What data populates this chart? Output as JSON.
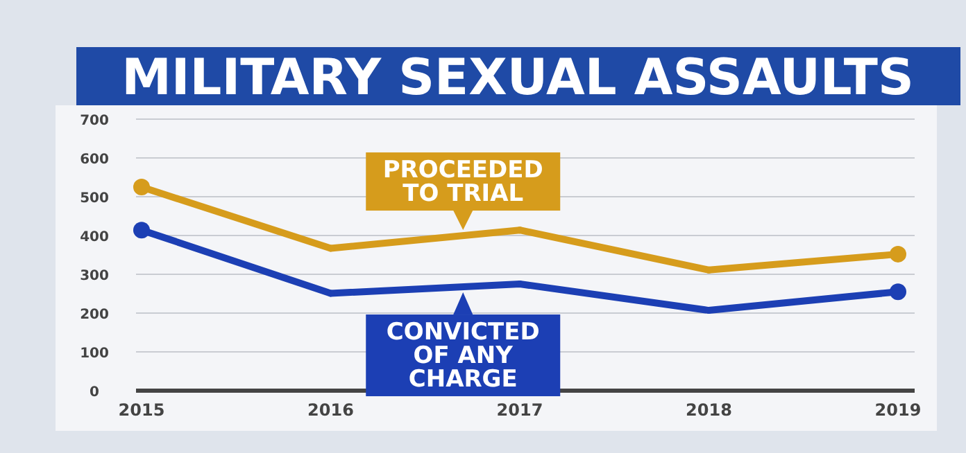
{
  "chart_data": {
    "type": "line",
    "title": "MILITARY SEXUAL ASSAULTS",
    "categories": [
      "2015",
      "2016",
      "2017",
      "2018",
      "2019"
    ],
    "series": [
      {
        "name": "PROCEEDED TO TRIAL",
        "color": "#d69c1c",
        "values": [
          525,
          367,
          414,
          311,
          352
        ]
      },
      {
        "name": "CONVICTED OF ANY CHARGE",
        "color": "#1c3fb4",
        "values": [
          414,
          251,
          275,
          207,
          255
        ]
      }
    ],
    "ylim": [
      0,
      700
    ],
    "yticks": [
      0,
      100,
      200,
      300,
      400,
      500,
      600,
      700
    ],
    "grid": "y",
    "legend": "bottom",
    "marker": "circle",
    "line_style": "solid"
  }
}
